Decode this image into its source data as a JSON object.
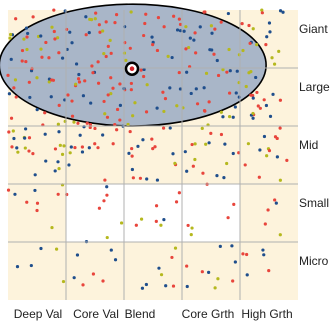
{
  "chart_data": {
    "type": "scatter",
    "title": "",
    "xlabel": "",
    "ylabel": "",
    "x_categories": [
      "Deep Val",
      "Core Val",
      "Blend",
      "Core Grth",
      "High Grth"
    ],
    "y_categories": [
      "Giant",
      "Large",
      "Mid",
      "Small",
      "Micro"
    ],
    "cell_fill": [
      [
        1,
        1,
        1,
        1,
        1
      ],
      [
        1,
        1,
        1,
        1,
        1
      ],
      [
        1,
        1,
        1,
        1,
        1
      ],
      [
        1,
        0,
        0,
        0,
        1
      ],
      [
        1,
        1,
        1,
        1,
        1
      ]
    ],
    "ellipse": {
      "center": [
        2.15,
        0.95
      ],
      "radius_x": 2.3,
      "radius_y": 1.05
    },
    "centroid": [
      2.0,
      1.15
    ],
    "series": [
      {
        "color": "#e8453c",
        "count": 180
      },
      {
        "color": "#1f4e8c",
        "count": 130
      },
      {
        "color": "#b5b81e",
        "count": 90
      }
    ],
    "legend": "none",
    "grid": true
  },
  "colors": {
    "background_fill": "#fdf3dc",
    "empty_cell_fill": "#ffffff",
    "grid_line": "#b0b0b0",
    "ellipse_fill": "#9aaac4",
    "ellipse_stroke": "#000000"
  }
}
